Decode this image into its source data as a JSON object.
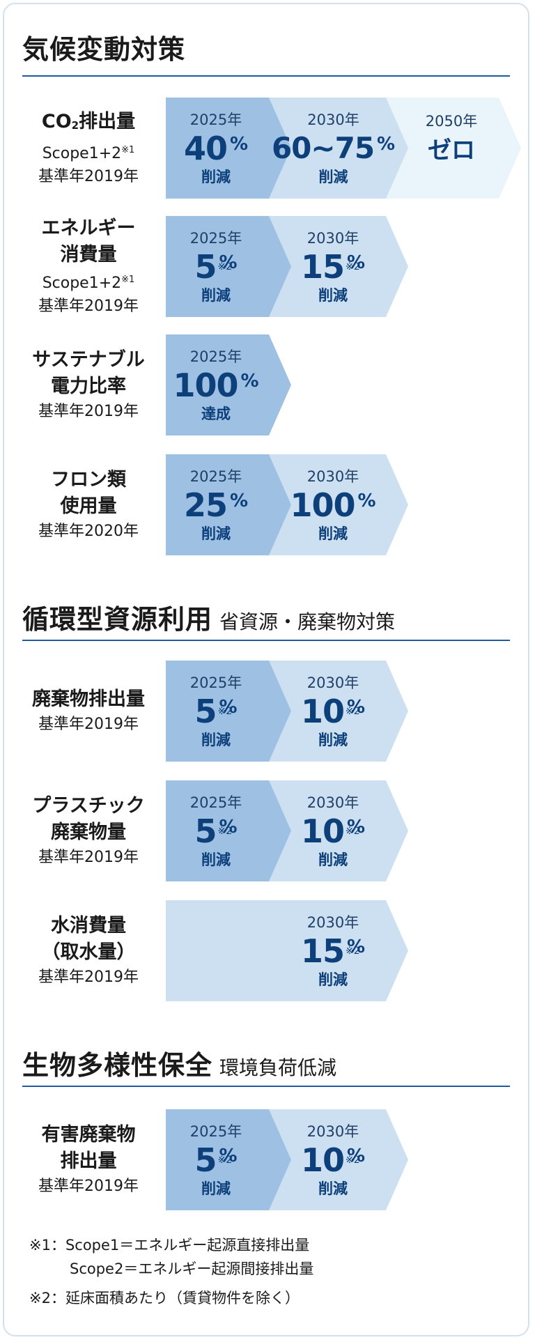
{
  "colors": {
    "dark_band": "#9ec1e3",
    "mid_band": "#cde0f2",
    "light_band": "#e9f4fb",
    "value_text": "#0d3f7a",
    "rule": "#1f5a9c"
  },
  "climate": {
    "title": "気候変動対策",
    "co2": {
      "main": "CO",
      "main_sub": "2",
      "main_rest": "排出量",
      "scope": "Scope1+2",
      "scope_note": "※1",
      "base": "基準年2019年",
      "targets": [
        {
          "year": "2025年",
          "value": "40",
          "unit": "%",
          "action": "削減"
        },
        {
          "year": "2030年",
          "value": "60~75",
          "unit": "%",
          "action": "削減"
        },
        {
          "year": "2050年",
          "text": "ゼロ"
        }
      ]
    },
    "energy": {
      "main1": "エネルギー",
      "main2": "消費量",
      "scope": "Scope1+2",
      "scope_note": "※1",
      "base": "基準年2019年",
      "targets": [
        {
          "year": "2025年",
          "value": "5",
          "note": "※2",
          "unit": "%",
          "action": "削減"
        },
        {
          "year": "2030年",
          "value": "15",
          "note": "※2",
          "unit": "%",
          "action": "削減"
        }
      ]
    },
    "sustainable": {
      "main1": "サステナブル",
      "main2": "電力比率",
      "base": "基準年2019年",
      "targets": [
        {
          "year": "2025年",
          "value": "100",
          "unit": "%",
          "action": "達成"
        }
      ]
    },
    "freon": {
      "main1": "フロン類",
      "main2": "使用量",
      "base": "基準年2020年",
      "targets": [
        {
          "year": "2025年",
          "value": "25",
          "unit": "%",
          "action": "削減"
        },
        {
          "year": "2030年",
          "value": "100",
          "unit": "%",
          "action": "削減"
        }
      ]
    }
  },
  "circular": {
    "title": "循環型資源利用",
    "subtitle": "省資源・廃棄物対策",
    "waste": {
      "main1": "廃棄物排出量",
      "base": "基準年2019年",
      "targets": [
        {
          "year": "2025年",
          "value": "5",
          "note": "※2",
          "unit": "%",
          "action": "削減"
        },
        {
          "year": "2030年",
          "value": "10",
          "note": "※2",
          "unit": "%",
          "action": "削減"
        }
      ]
    },
    "plastic": {
      "main1": "プラスチック",
      "main2": "廃棄物量",
      "base": "基準年2019年",
      "targets": [
        {
          "year": "2025年",
          "value": "5",
          "note": "※2",
          "unit": "%",
          "action": "削減"
        },
        {
          "year": "2030年",
          "value": "10",
          "note": "※2",
          "unit": "%",
          "action": "削減"
        }
      ]
    },
    "water": {
      "main1": "水消費量",
      "main2": "（取水量）",
      "base": "基準年2019年",
      "targets": [
        {
          "year": "2030年",
          "value": "15",
          "note": "※2",
          "unit": "%",
          "action": "削減"
        }
      ]
    }
  },
  "biodiversity": {
    "title": "生物多様性保全",
    "subtitle": "環境負荷低減",
    "hazardous": {
      "main1": "有害廃棄物",
      "main2": "排出量",
      "base": "基準年2019年",
      "targets": [
        {
          "year": "2025年",
          "value": "5",
          "note": "※2",
          "unit": "%",
          "action": "削減"
        },
        {
          "year": "2030年",
          "value": "10",
          "note": "※2",
          "unit": "%",
          "action": "削減"
        }
      ]
    }
  },
  "footnotes": {
    "n1_line1": "※1：Scope1＝エネルギー起源直接排出量",
    "n1_line2": "Scope2＝エネルギー起源間接排出量",
    "n2": "※2：延床面積あたり（賃貸物件を除く）"
  }
}
